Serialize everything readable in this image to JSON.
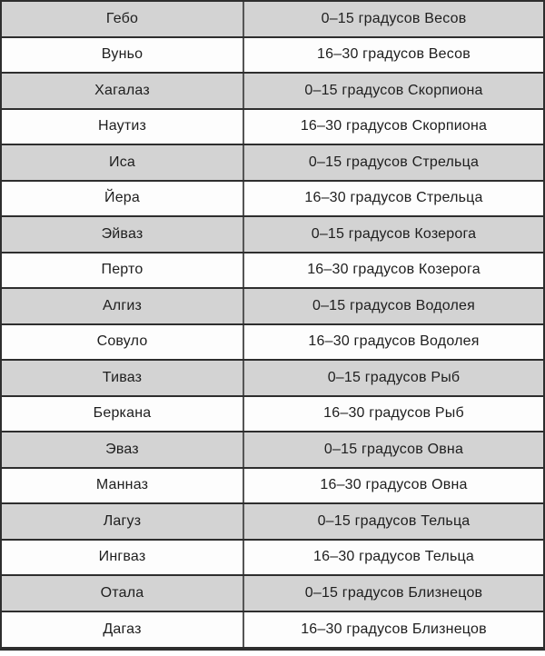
{
  "table": {
    "name": "rune-zodiac-degrees-table",
    "columns": [
      {
        "key": "rune",
        "label": ""
      },
      {
        "key": "degrees",
        "label": ""
      }
    ],
    "rows": [
      {
        "rune": "Гебо",
        "degrees": "0–15 градусов Весов"
      },
      {
        "rune": "Вуньо",
        "degrees": "16–30 градусов Весов"
      },
      {
        "rune": "Хагалаз",
        "degrees": "0–15 градусов Скорпиона"
      },
      {
        "rune": "Наутиз",
        "degrees": "16–30 градусов Скорпиона"
      },
      {
        "rune": "Иса",
        "degrees": "0–15 градусов Стрельца"
      },
      {
        "rune": "Йера",
        "degrees": "16–30 градусов Стрельца"
      },
      {
        "rune": "Эйваз",
        "degrees": "0–15 градусов Козерога"
      },
      {
        "rune": "Перто",
        "degrees": "16–30 градусов Козерога"
      },
      {
        "rune": "Алгиз",
        "degrees": "0–15 градусов Водолея"
      },
      {
        "rune": "Совуло",
        "degrees": "16–30 градусов Водолея"
      },
      {
        "rune": "Тиваз",
        "degrees": "0–15 градусов Рыб"
      },
      {
        "rune": "Беркана",
        "degrees": "16–30 градусов Рыб"
      },
      {
        "rune": "Эваз",
        "degrees": "0–15 градусов Овна"
      },
      {
        "rune": "Манназ",
        "degrees": "16–30 градусов Овна"
      },
      {
        "rune": "Лагуз",
        "degrees": "0–15 градусов Тельца"
      },
      {
        "rune": "Ингваз",
        "degrees": "16–30 градусов Тельца"
      },
      {
        "rune": "Отала",
        "degrees": "0–15 градусов Близнецов"
      },
      {
        "rune": "Дагаз",
        "degrees": "16–30 градусов Близнецов"
      }
    ]
  },
  "colors": {
    "row_alt": "#d3d3d3",
    "row_base": "#fdfdfd",
    "border": "#2e2e2e",
    "divider": "#555555",
    "text": "#1e1e1e"
  }
}
